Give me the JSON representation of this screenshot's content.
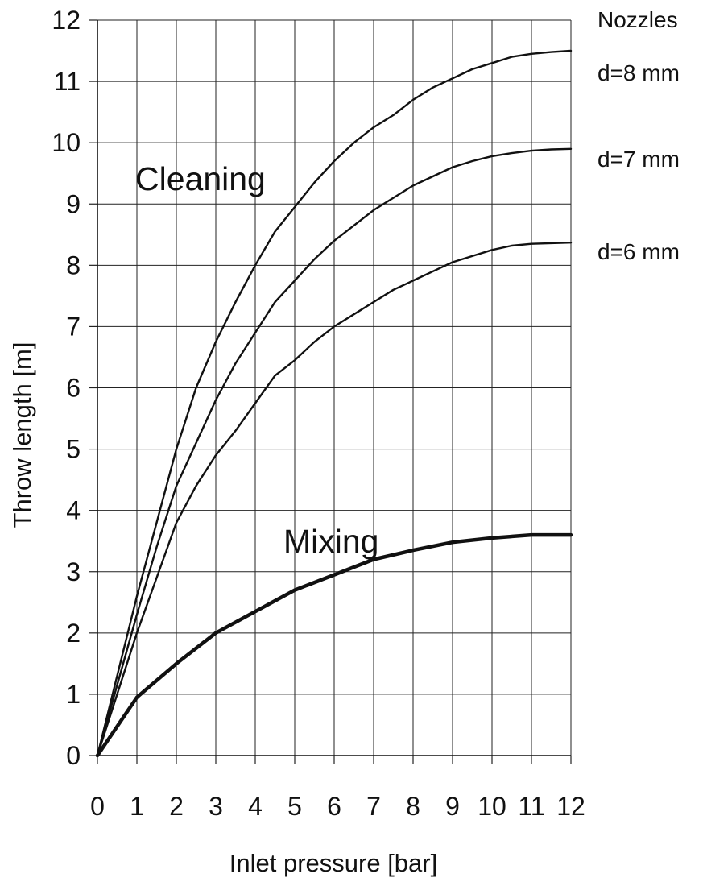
{
  "chart_data": {
    "type": "line",
    "xlabel": "Inlet pressure [bar]",
    "ylabel": "Throw length [m]",
    "xlim": [
      0,
      12
    ],
    "ylim": [
      0,
      12
    ],
    "xticks": [
      "0",
      "1",
      "2",
      "3",
      "4",
      "5",
      "6",
      "7",
      "8",
      "9",
      "10",
      "11",
      "12"
    ],
    "yticks": [
      "0",
      "1",
      "2",
      "3",
      "4",
      "5",
      "6",
      "7",
      "8",
      "9",
      "10",
      "11",
      "12"
    ],
    "grid": true,
    "legend_title": "Nozzles",
    "annotations": {
      "cleaning": "Cleaning",
      "mixing": "Mixing"
    },
    "series": [
      {
        "name": "d=8 mm",
        "color": "#111111",
        "x": [
          0,
          0.5,
          1,
          1.5,
          2,
          2.5,
          3,
          3.5,
          4,
          4.5,
          5,
          5.5,
          6,
          6.5,
          7,
          7.5,
          8,
          8.5,
          9,
          9.5,
          10,
          10.5,
          11,
          11.5,
          12
        ],
        "y": [
          0,
          1.3,
          2.6,
          3.8,
          5.0,
          6.0,
          6.75,
          7.4,
          8.0,
          8.55,
          8.95,
          9.35,
          9.7,
          10.0,
          10.25,
          10.45,
          10.7,
          10.9,
          11.05,
          11.2,
          11.3,
          11.4,
          11.45,
          11.48,
          11.5
        ]
      },
      {
        "name": "d=7 mm",
        "color": "#111111",
        "x": [
          0,
          0.5,
          1,
          1.5,
          2,
          2.5,
          3,
          3.5,
          4,
          4.5,
          5,
          5.5,
          6,
          6.5,
          7,
          7.5,
          8,
          8.5,
          9,
          9.5,
          10,
          10.5,
          11,
          11.5,
          12
        ],
        "y": [
          0,
          1.15,
          2.3,
          3.4,
          4.4,
          5.1,
          5.8,
          6.4,
          6.9,
          7.4,
          7.75,
          8.1,
          8.4,
          8.65,
          8.9,
          9.1,
          9.3,
          9.45,
          9.6,
          9.7,
          9.78,
          9.83,
          9.87,
          9.89,
          9.9
        ]
      },
      {
        "name": "d=6 mm",
        "color": "#111111",
        "x": [
          0,
          0.5,
          1,
          1.5,
          2,
          2.5,
          3,
          3.5,
          4,
          4.5,
          5,
          5.5,
          6,
          6.5,
          7,
          7.5,
          8,
          8.5,
          9,
          9.5,
          10,
          10.5,
          11,
          11.5,
          12
        ],
        "y": [
          0,
          1.0,
          2.0,
          2.9,
          3.8,
          4.4,
          4.9,
          5.3,
          5.75,
          6.2,
          6.45,
          6.75,
          7.0,
          7.2,
          7.4,
          7.6,
          7.75,
          7.9,
          8.05,
          8.15,
          8.25,
          8.32,
          8.35,
          8.36,
          8.37
        ]
      },
      {
        "name": "Mixing",
        "color": "#111111",
        "thick": true,
        "x": [
          0,
          1,
          2,
          3,
          4,
          5,
          6,
          7,
          8,
          9,
          10,
          11,
          12
        ],
        "y": [
          0,
          0.95,
          1.5,
          2.0,
          2.35,
          2.7,
          2.95,
          3.2,
          3.35,
          3.48,
          3.55,
          3.6,
          3.6
        ]
      }
    ]
  }
}
